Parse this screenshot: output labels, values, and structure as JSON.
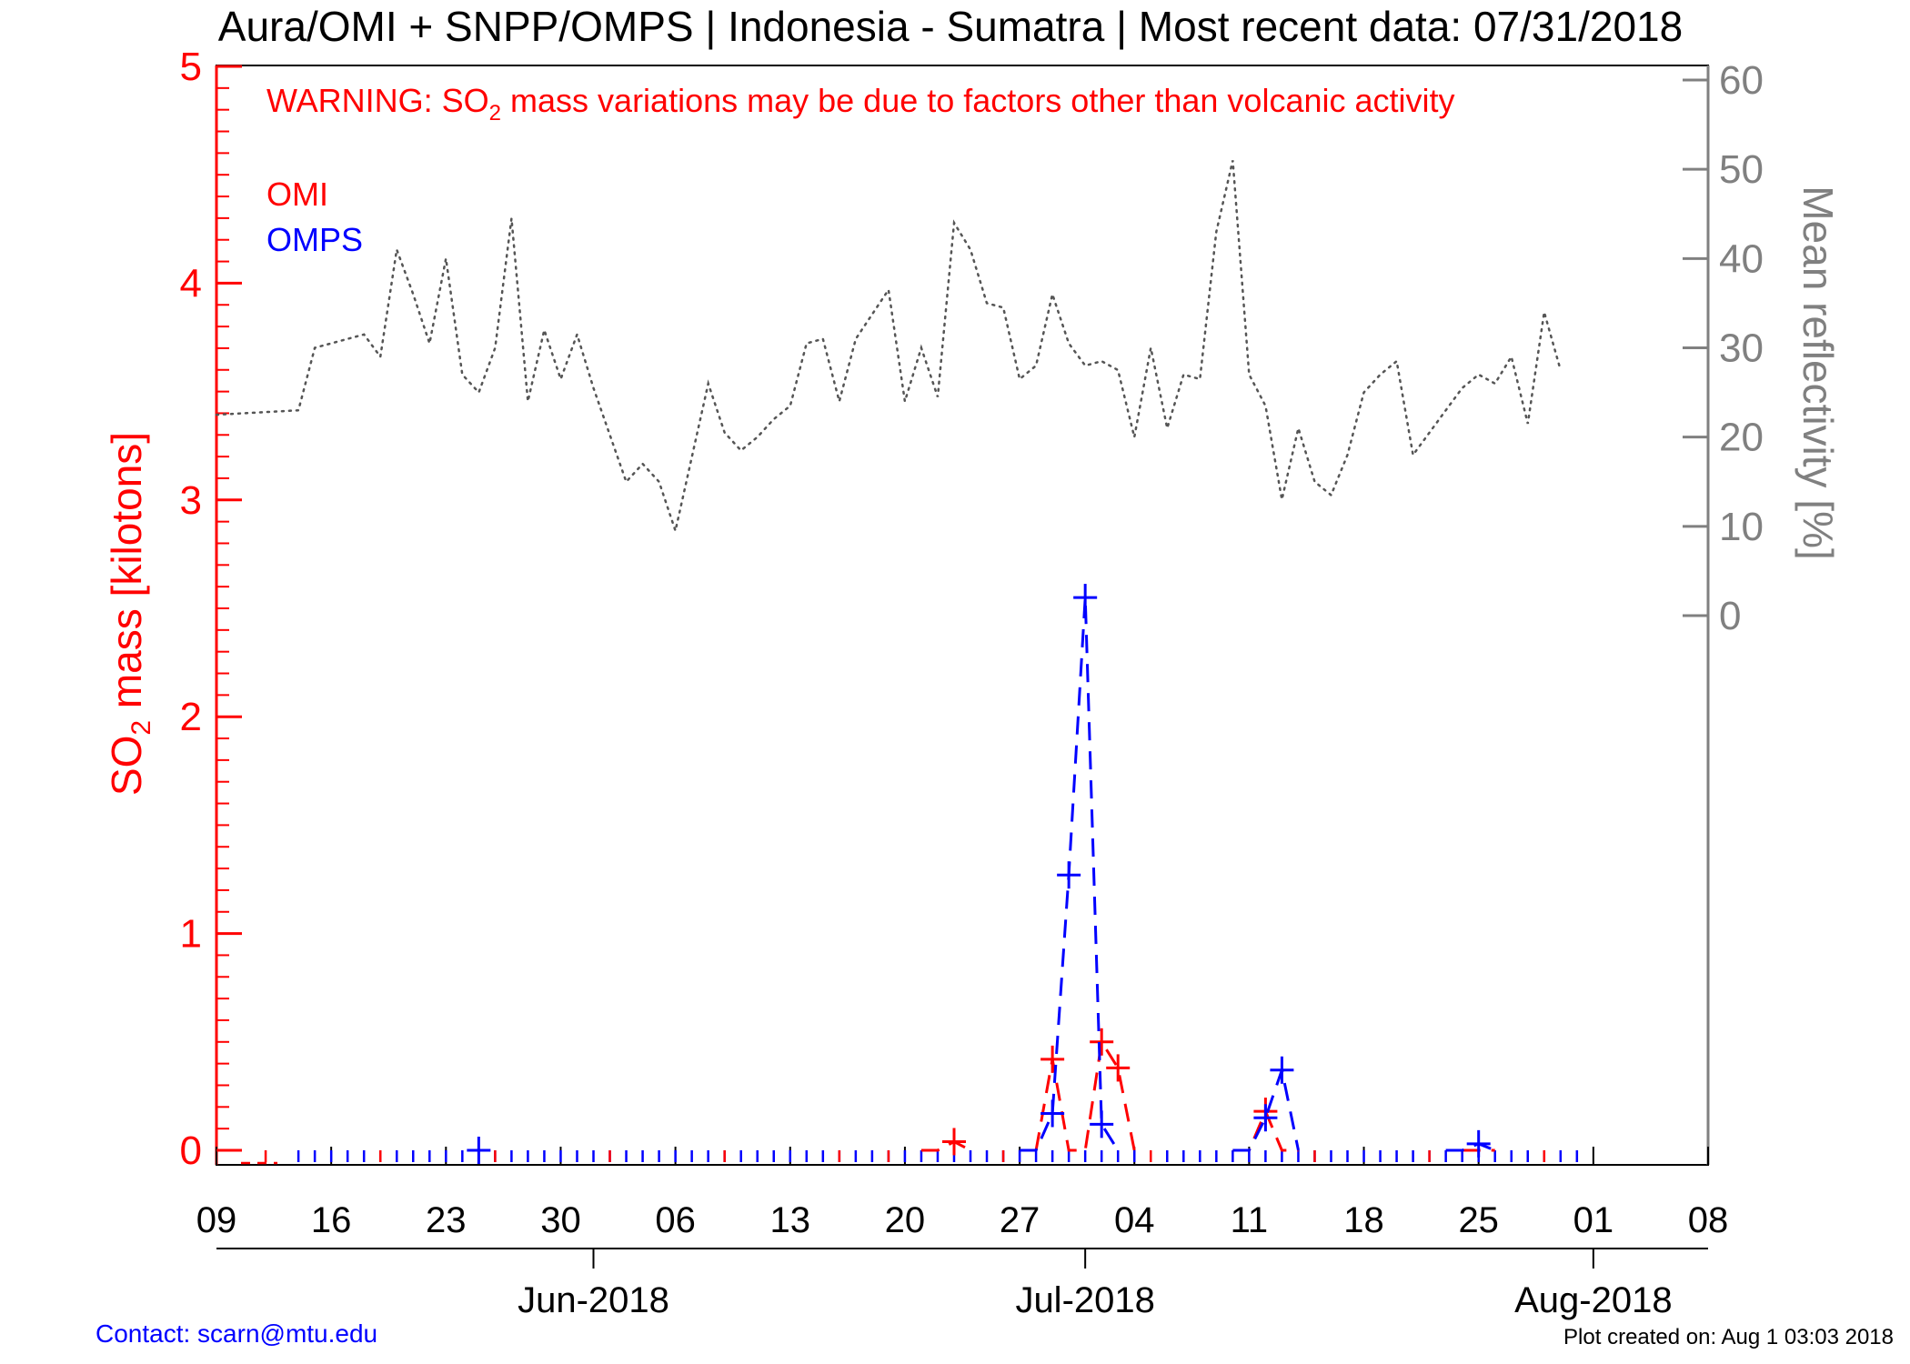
{
  "chart_data": {
    "type": "line",
    "title": "Aura/OMI + SNPP/OMPS | Indonesia - Sumatra | Most recent data: 07/31/2018",
    "warning": {
      "prefix": "WARNING: SO",
      "subscript": "2",
      "suffix": " mass variations may be due to factors other than volcanic activity"
    },
    "ylabel": {
      "prefix": "SO",
      "subscript": "2",
      "suffix": " mass [kilotons]"
    },
    "y2label": "Mean reflectivity [%]",
    "ylim": [
      0,
      5
    ],
    "y2_ticks": [
      0,
      10,
      20,
      30,
      40,
      50,
      60
    ],
    "y_ticks": [
      0,
      1,
      2,
      3,
      4,
      5
    ],
    "x_range": [
      "2018-05-09",
      "2018-08-08"
    ],
    "x_day_ticks": [
      {
        "date": "2018-05-09",
        "label": "09"
      },
      {
        "date": "2018-05-16",
        "label": "16"
      },
      {
        "date": "2018-05-23",
        "label": "23"
      },
      {
        "date": "2018-05-30",
        "label": "30"
      },
      {
        "date": "2018-06-06",
        "label": "06"
      },
      {
        "date": "2018-06-13",
        "label": "13"
      },
      {
        "date": "2018-06-20",
        "label": "20"
      },
      {
        "date": "2018-06-27",
        "label": "27"
      },
      {
        "date": "2018-07-04",
        "label": "04"
      },
      {
        "date": "2018-07-11",
        "label": "11"
      },
      {
        "date": "2018-07-18",
        "label": "18"
      },
      {
        "date": "2018-07-25",
        "label": "25"
      },
      {
        "date": "2018-08-01",
        "label": "01"
      },
      {
        "date": "2018-08-08",
        "label": "08"
      }
    ],
    "x_month_ticks": [
      {
        "date": "2018-06-01",
        "label": "Jun-2018"
      },
      {
        "date": "2018-07-01",
        "label": "Jul-2018"
      },
      {
        "date": "2018-08-01",
        "label": "Aug-2018"
      }
    ],
    "legend": {
      "placement": "top-left"
    },
    "series": [
      {
        "name": "OMI",
        "color": "#ff0000",
        "axis": "left",
        "style": "dashed",
        "marker": "plus",
        "points": [
          [
            "2018-06-21",
            0
          ],
          [
            "2018-06-22",
            0
          ],
          [
            "2018-06-23",
            0.04
          ],
          [
            "2018-06-24",
            0
          ],
          [
            "2018-06-28",
            0
          ],
          [
            "2018-06-29",
            0.42
          ],
          [
            "2018-06-30",
            0
          ],
          [
            "2018-07-01",
            0
          ],
          [
            "2018-07-02",
            0.5
          ],
          [
            "2018-07-03",
            0.38
          ],
          [
            "2018-07-04",
            0
          ],
          [
            "2018-07-10",
            0
          ],
          [
            "2018-07-11",
            0
          ],
          [
            "2018-07-12",
            0.18
          ],
          [
            "2018-07-13",
            0
          ],
          [
            "2018-07-14",
            0
          ],
          [
            "2018-07-20",
            0
          ],
          [
            "2018-07-24",
            0
          ],
          [
            "2018-07-25",
            0
          ],
          [
            "2018-07-26",
            0
          ]
        ],
        "zero_ticks": [
          "2018-05-12",
          "2018-05-19",
          "2018-05-26",
          "2018-06-02",
          "2018-06-09",
          "2018-06-16",
          "2018-06-19",
          "2018-06-26",
          "2018-07-05",
          "2018-07-15",
          "2018-07-22",
          "2018-07-29"
        ]
      },
      {
        "name": "OMPS",
        "color": "#0000ff",
        "axis": "left",
        "style": "dashed",
        "marker": "plus",
        "points": [
          [
            "2018-06-27",
            0
          ],
          [
            "2018-06-28",
            0
          ],
          [
            "2018-06-29",
            0.17
          ],
          [
            "2018-06-30",
            1.27
          ],
          [
            "2018-07-01",
            2.55
          ],
          [
            "2018-07-02",
            0.12
          ],
          [
            "2018-07-03",
            0
          ],
          [
            "2018-07-10",
            0
          ],
          [
            "2018-07-11",
            0
          ],
          [
            "2018-07-12",
            0.15
          ],
          [
            "2018-07-13",
            0.37
          ],
          [
            "2018-07-14",
            0
          ],
          [
            "2018-07-23",
            0
          ],
          [
            "2018-07-24",
            0
          ],
          [
            "2018-07-25",
            0.03
          ],
          [
            "2018-07-26",
            0
          ]
        ],
        "extra_markers": [
          [
            "2018-05-25",
            0
          ]
        ],
        "zero_ticks_range": [
          "2018-05-14",
          "2018-07-31"
        ]
      },
      {
        "name": "Mean reflectivity",
        "color": "#555555",
        "axis": "right",
        "style": "dotted",
        "marker": "none",
        "points": [
          [
            "2018-05-09",
            22.5
          ],
          [
            "2018-05-14",
            23.0
          ],
          [
            "2018-05-15",
            30.0
          ],
          [
            "2018-05-18",
            31.5
          ],
          [
            "2018-05-19",
            29.0
          ],
          [
            "2018-05-20",
            41.0
          ],
          [
            "2018-05-21",
            36.0
          ],
          [
            "2018-05-22",
            30.5
          ],
          [
            "2018-05-23",
            40.0
          ],
          [
            "2018-05-24",
            27.0
          ],
          [
            "2018-05-25",
            25.0
          ],
          [
            "2018-05-26",
            30.0
          ],
          [
            "2018-05-27",
            44.5
          ],
          [
            "2018-05-28",
            24.0
          ],
          [
            "2018-05-29",
            32.0
          ],
          [
            "2018-05-30",
            26.5
          ],
          [
            "2018-05-31",
            31.5
          ],
          [
            "2018-06-01",
            25.5
          ],
          [
            "2018-06-03",
            15.0
          ],
          [
            "2018-06-04",
            17.0
          ],
          [
            "2018-06-05",
            15.0
          ],
          [
            "2018-06-06",
            9.5
          ],
          [
            "2018-06-08",
            26.0
          ],
          [
            "2018-06-09",
            20.5
          ],
          [
            "2018-06-10",
            18.5
          ],
          [
            "2018-06-11",
            20.0
          ],
          [
            "2018-06-12",
            22.0
          ],
          [
            "2018-06-13",
            23.5
          ],
          [
            "2018-06-14",
            30.5
          ],
          [
            "2018-06-15",
            31.0
          ],
          [
            "2018-06-16",
            24.0
          ],
          [
            "2018-06-17",
            31.0
          ],
          [
            "2018-06-19",
            36.5
          ],
          [
            "2018-06-20",
            24.0
          ],
          [
            "2018-06-21",
            30.0
          ],
          [
            "2018-06-22",
            24.5
          ],
          [
            "2018-06-23",
            44.0
          ],
          [
            "2018-06-24",
            41.0
          ],
          [
            "2018-06-25",
            35.0
          ],
          [
            "2018-06-26",
            34.5
          ],
          [
            "2018-06-27",
            26.5
          ],
          [
            "2018-06-28",
            28.0
          ],
          [
            "2018-06-29",
            36.0
          ],
          [
            "2018-06-30",
            30.5
          ],
          [
            "2018-07-01",
            28.0
          ],
          [
            "2018-07-02",
            28.5
          ],
          [
            "2018-07-03",
            27.5
          ],
          [
            "2018-07-04",
            20.0
          ],
          [
            "2018-07-05",
            30.0
          ],
          [
            "2018-07-06",
            21.0
          ],
          [
            "2018-07-07",
            27.0
          ],
          [
            "2018-07-08",
            26.5
          ],
          [
            "2018-07-09",
            43.0
          ],
          [
            "2018-07-10",
            51.0
          ],
          [
            "2018-07-11",
            27.0
          ],
          [
            "2018-07-12",
            23.5
          ],
          [
            "2018-07-13",
            13.0
          ],
          [
            "2018-07-14",
            21.0
          ],
          [
            "2018-07-15",
            15.0
          ],
          [
            "2018-07-16",
            13.5
          ],
          [
            "2018-07-17",
            18.0
          ],
          [
            "2018-07-18",
            25.0
          ],
          [
            "2018-07-19",
            27.0
          ],
          [
            "2018-07-20",
            28.5
          ],
          [
            "2018-07-21",
            18.0
          ],
          [
            "2018-07-22",
            20.5
          ],
          [
            "2018-07-23",
            23.0
          ],
          [
            "2018-07-24",
            25.5
          ],
          [
            "2018-07-25",
            27.0
          ],
          [
            "2018-07-26",
            26.0
          ],
          [
            "2018-07-27",
            29.0
          ],
          [
            "2018-07-28",
            21.5
          ],
          [
            "2018-07-29",
            34.0
          ],
          [
            "2018-07-30",
            27.5
          ]
        ]
      }
    ],
    "footer": {
      "contact": "Contact: scarn@mtu.edu",
      "created": "Plot created on: Aug  1 03:03 2018"
    }
  },
  "colors": {
    "left_axis": "#ff0000",
    "right_axis": "#808080",
    "frame": "#000000"
  }
}
